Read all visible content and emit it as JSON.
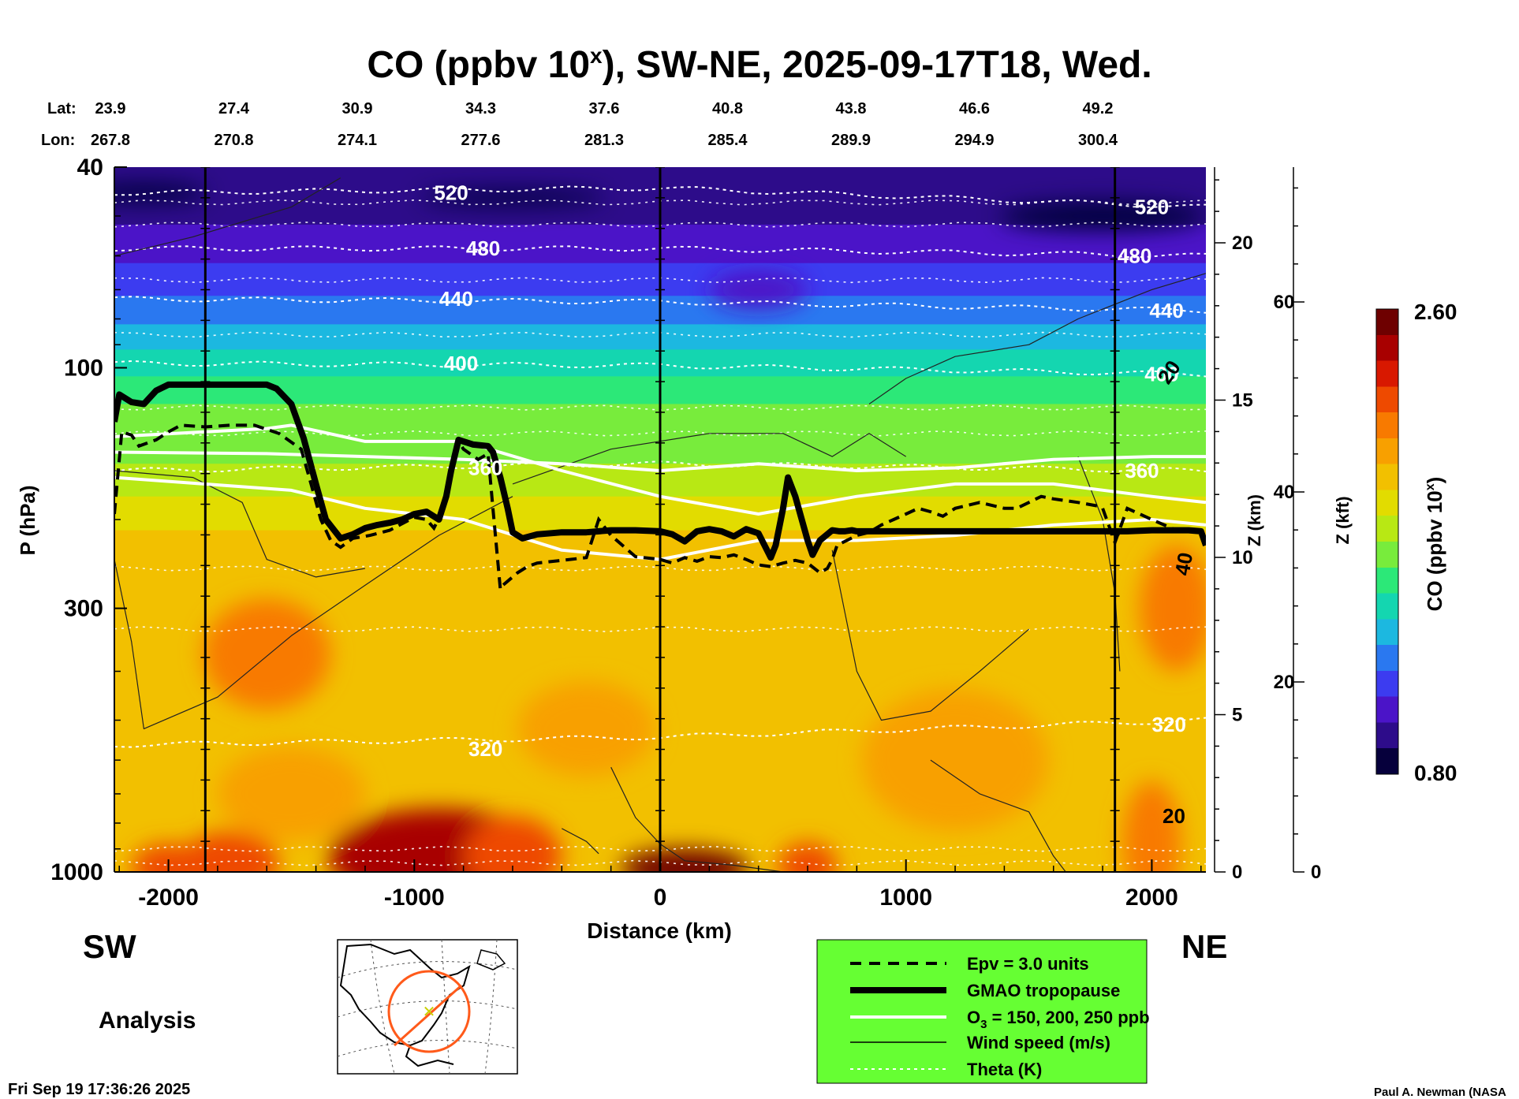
{
  "chart_data": {
    "type": "heatmap",
    "title_main": "CO (ppbv 10",
    "title_sup": "x",
    "title_rest": "), SW-NE, 2025-09-17T18, Wed.",
    "lat_label": "Lat:",
    "lon_label": "Lon:",
    "lat_values": [
      "23.9",
      "27.4",
      "30.9",
      "34.3",
      "37.6",
      "40.8",
      "43.8",
      "46.6",
      "49.2"
    ],
    "lon_values": [
      "267.8",
      "270.8",
      "274.1",
      "277.6",
      "281.3",
      "285.4",
      "289.9",
      "294.9",
      "300.4"
    ],
    "xlabel": "Distance (km)",
    "xlim": [
      -2220,
      2220
    ],
    "x_ticks": [
      -2000,
      -1000,
      0,
      1000,
      2000
    ],
    "x_tick_labels": [
      "-2000",
      "-1000",
      "0",
      "1000",
      "2000"
    ],
    "ylabel": "P (hPa)",
    "ylim": [
      1000,
      40
    ],
    "y_scale": "log",
    "y_ticks": [
      40,
      100,
      300,
      1000
    ],
    "y_tick_labels": [
      "40",
      "100",
      "300",
      "1000"
    ],
    "z_km_label": "Z (km)",
    "z_km_ticks": [
      0,
      5,
      10,
      15,
      20
    ],
    "z_km_tick_labels": [
      "0",
      "5",
      "10",
      "15",
      "20"
    ],
    "z_kft_label": "Z (kft)",
    "z_kft_ticks": [
      0,
      20,
      40,
      60
    ],
    "z_kft_tick_labels": [
      "0",
      "20",
      "40",
      "60"
    ],
    "vertical_lines_km": [
      -1850,
      0,
      1850
    ],
    "colorbar": {
      "label": "CO (ppbv 10",
      "label_sup": "x",
      "label_end": ")",
      "min": 0.8,
      "max": 2.6,
      "min_label": "0.80",
      "max_label": "2.60",
      "colors": [
        "#06003c",
        "#2d0c8a",
        "#4b14c8",
        "#3c3cf0",
        "#2a78f0",
        "#1cb8e0",
        "#14d6b0",
        "#2ce878",
        "#78ec3c",
        "#b8e814",
        "#e2dc00",
        "#f2c000",
        "#f8a000",
        "#f87a00",
        "#ee4a00",
        "#d81800",
        "#a80000",
        "#6e0000"
      ]
    },
    "theta_labels": [
      "520",
      "480",
      "440",
      "400",
      "360",
      "320",
      "520",
      "480",
      "440",
      "400",
      "360",
      "320"
    ],
    "wind_labels": [
      "20",
      "40",
      "20"
    ],
    "gmao_tropopause": {
      "x": [
        -2220,
        -2200,
        -2150,
        -2100,
        -2050,
        -2000,
        -1900,
        -1800,
        -1700,
        -1600,
        -1560,
        -1500,
        -1450,
        -1400,
        -1360,
        -1300,
        -1250,
        -1200,
        -1150,
        -1100,
        -1050,
        -1000,
        -950,
        -900,
        -870,
        -850,
        -820,
        -800,
        -760,
        -700,
        -680,
        -650,
        -620,
        -600,
        -560,
        -500,
        -400,
        -300,
        -200,
        -100,
        0,
        50,
        100,
        150,
        200,
        250,
        300,
        350,
        400,
        450,
        470,
        500,
        520,
        550,
        600,
        620,
        650,
        700,
        730,
        750,
        780,
        800,
        900,
        1000,
        1100,
        1200,
        1300,
        1400,
        1500,
        1600,
        1700,
        1800,
        1900,
        2000,
        2100,
        2150,
        2200,
        2220
      ],
      "p": [
        128,
        113,
        117,
        118,
        111,
        108,
        108,
        108,
        108,
        108,
        110,
        118,
        138,
        170,
        200,
        218,
        214,
        208,
        205,
        203,
        200,
        195,
        193,
        200,
        180,
        160,
        139,
        140,
        142,
        143,
        147,
        165,
        190,
        212,
        218,
        214,
        212,
        212,
        210,
        210,
        211,
        214,
        221,
        211,
        209,
        211,
        216,
        209,
        213,
        238,
        225,
        190,
        165,
        180,
        220,
        235,
        220,
        210,
        211,
        211,
        210,
        211,
        211,
        211,
        211,
        211,
        211,
        211,
        211,
        211,
        211,
        211,
        211,
        210,
        210,
        210,
        211,
        225
      ]
    },
    "epv_3_units": {
      "x": [
        -2220,
        -2190,
        -2150,
        -2120,
        -2050,
        -2000,
        -1950,
        -1850,
        -1750,
        -1650,
        -1550,
        -1460,
        -1420,
        -1380,
        -1340,
        -1300,
        -1250,
        -1180,
        -1100,
        -1000,
        -950,
        -920,
        -880,
        -850,
        -820,
        -800,
        -740,
        -700,
        -680,
        -650,
        -640,
        -620,
        -580,
        -540,
        -500,
        -400,
        -300,
        -250,
        -200,
        -100,
        0,
        50,
        100,
        150,
        200,
        250,
        300,
        350,
        400,
        450,
        500,
        550,
        600,
        650,
        680,
        700,
        720,
        800,
        850,
        900,
        950,
        1000,
        1050,
        1100,
        1150,
        1200,
        1300,
        1400,
        1450,
        1500,
        1550,
        1600,
        1700,
        1780,
        1800,
        1850,
        1900,
        2000,
        2100,
        2200,
        2220
      ],
      "p": [
        195,
        134,
        136,
        143,
        139,
        134,
        130,
        131,
        130,
        130,
        135,
        145,
        170,
        200,
        220,
        227,
        218,
        215,
        210,
        198,
        200,
        208,
        190,
        160,
        140,
        145,
        152,
        148,
        190,
        275,
        270,
        265,
        255,
        248,
        244,
        241,
        238,
        200,
        215,
        237,
        240,
        244,
        238,
        242,
        237,
        238,
        235,
        240,
        246,
        248,
        244,
        241,
        244,
        255,
        250,
        240,
        225,
        215,
        212,
        205,
        200,
        195,
        190,
        193,
        197,
        190,
        185,
        190,
        190,
        185,
        180,
        182,
        185,
        188,
        190,
        222,
        190,
        200,
        210,
        212,
        214
      ]
    },
    "ozone_contours_ppb": [
      {
        "label": "150",
        "x": [
          -2220,
          -1600,
          -1200,
          -800,
          -400,
          0,
          400,
          800,
          1200,
          1600,
          2000,
          2220
        ],
        "p": [
          147,
          148,
          150,
          152,
          155,
          160,
          155,
          160,
          158,
          152,
          150,
          150
        ]
      },
      {
        "label": "200",
        "x": [
          -2220,
          -1600,
          -1500,
          -1200,
          -800,
          -400,
          0,
          400,
          800,
          1200,
          1600,
          2000,
          2220
        ],
        "p": [
          137,
          132,
          130,
          140,
          140,
          160,
          180,
          195,
          180,
          170,
          170,
          180,
          185
        ]
      },
      {
        "label": "250",
        "x": [
          -2220,
          -1500,
          -1200,
          -800,
          -400,
          0,
          400,
          800,
          1200,
          1600,
          2000,
          2220
        ],
        "p": [
          165,
          175,
          190,
          200,
          230,
          240,
          220,
          220,
          215,
          205,
          200,
          205
        ]
      }
    ],
    "theta_contours_K": [
      {
        "label": "520",
        "x": [
          -2220,
          0,
          2220
        ],
        "p": [
          45,
          44,
          48
        ]
      },
      {
        "label": "480",
        "x": [
          -2220,
          0,
          2220
        ],
        "p": [
          58,
          58,
          60
        ]
      },
      {
        "label": "440",
        "x": [
          -2220,
          0,
          2220
        ],
        "p": [
          73,
          74,
          77
        ]
      },
      {
        "label": "400",
        "x": [
          -2220,
          0,
          2220
        ],
        "p": [
          98,
          99,
          103
        ]
      },
      {
        "label": "360",
        "x": [
          -2220,
          0,
          2220
        ],
        "p": [
          160,
          155,
          160
        ]
      },
      {
        "label": "320",
        "x": [
          -2220,
          0,
          2220
        ],
        "p": [
          560,
          540,
          500
        ]
      }
    ],
    "legend": {
      "position": "bottom-center",
      "items": [
        {
          "style": "dashed-black",
          "label": "Epv = 3.0 units"
        },
        {
          "style": "thick-black",
          "label": "GMAO tropopause"
        },
        {
          "style": "white",
          "label_pre": "O",
          "label_sub": "3",
          "label_post": " = 150, 200, 250 ppb"
        },
        {
          "style": "thin-black",
          "label": "Wind speed (m/s)"
        },
        {
          "style": "dotted-white",
          "label": "Theta (K)"
        }
      ]
    },
    "left_direction": "SW",
    "right_direction": "NE",
    "analysis_label": "Analysis",
    "timestamp": "Fri Sep 19 17:36:26 2025",
    "credit": "Paul A. Newman (NASA"
  }
}
